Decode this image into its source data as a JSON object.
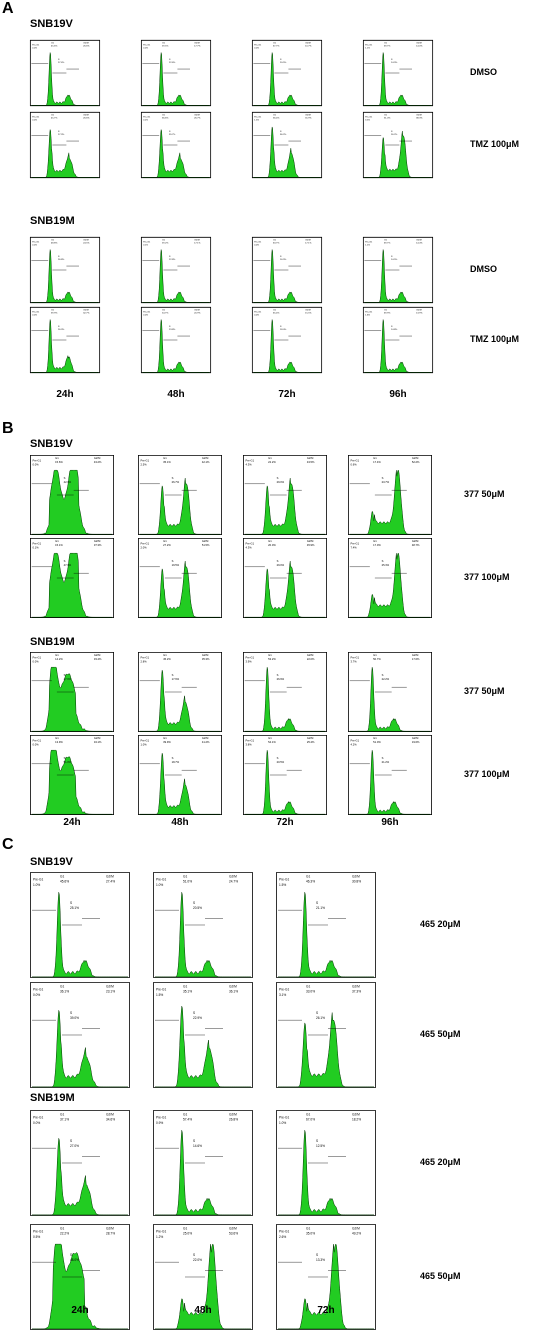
{
  "panels": [
    {
      "letter": "A",
      "groups": [
        {
          "cell_line": "SNB19V",
          "rows": [
            {
              "label": "DMSO",
              "plots": [
                {
                  "preg1": "0.0%",
                  "g1": "45.6%",
                  "s": "27.4%",
                  "g2m": "26.6%",
                  "shape": "dmso"
                },
                {
                  "preg1": "0.0%",
                  "g1": "59.5%",
                  "s": "22.6%",
                  "g2m": "17.7%",
                  "shape": "dmso"
                },
                {
                  "preg1": "0.0%",
                  "g1": "67.7%",
                  "s": "20.5%",
                  "g2m": "10.7%",
                  "shape": "dmso"
                },
                {
                  "preg1": "1.1%",
                  "g1": "69.7%",
                  "s": "14.9%",
                  "g2m": "14.0%",
                  "shape": "dmso"
                }
              ]
            },
            {
              "label": "TMZ 100μM",
              "plots": [
                {
                  "preg1": "0.0%",
                  "g1": "45.7%",
                  "s": "27.3%",
                  "g2m": "26.6%",
                  "shape": "tmz"
                },
                {
                  "preg1": "0.2%",
                  "g1": "36.6%",
                  "s": "39.7%",
                  "g2m": "26.7%",
                  "shape": "tmz"
                },
                {
                  "preg1": "1.5%",
                  "g1": "36.4%",
                  "s": "36.2%",
                  "g2m": "31.9%",
                  "shape": "tmz2"
                },
                {
                  "preg1": "3.5%",
                  "g1": "31.0%",
                  "s": "26.2%",
                  "g2m": "38.3%",
                  "shape": "tmz3"
                }
              ]
            }
          ]
        },
        {
          "cell_line": "SNB19M",
          "rows": [
            {
              "label": "DMSO",
              "plots": [
                {
                  "preg1": "0.0%",
                  "g1": "48.8%",
                  "s": "26.8%",
                  "g2m": "24.5%",
                  "shape": "dmso"
                },
                {
                  "preg1": "0.1%",
                  "g1": "59.2%",
                  "s": "22.8%",
                  "g2m": "17.1%",
                  "shape": "dmso"
                },
                {
                  "preg1": "0.0%",
                  "g1": "63.7%",
                  "s": "16.9%",
                  "g2m": "17.1%",
                  "shape": "dmso"
                },
                {
                  "preg1": "1.1%",
                  "g1": "69.7%",
                  "s": "14.5%",
                  "g2m": "14.4%",
                  "shape": "dmso"
                }
              ]
            },
            {
              "label": "TMZ 100μM",
              "plots": [
                {
                  "preg1": "0.0%",
                  "g1": "39.9%",
                  "s": "26.3%",
                  "g2m": "32.7%",
                  "shape": "dmso2"
                },
                {
                  "preg1": "0.0%",
                  "g1": "54.7%",
                  "s": "23.8%",
                  "g2m": "20.9%",
                  "shape": "dmso"
                },
                {
                  "preg1": "0.0%",
                  "g1": "65.4%",
                  "s": "18.0%",
                  "g2m": "15.5%",
                  "shape": "dmso"
                },
                {
                  "preg1": "1.6%",
                  "g1": "69.9%",
                  "s": "14.8%",
                  "g2m": "13.9%",
                  "shape": "dmso"
                }
              ]
            }
          ]
        }
      ],
      "times": [
        "24h",
        "48h",
        "72h",
        "96h"
      ]
    },
    {
      "letter": "B",
      "groups": [
        {
          "cell_line": "SNB19V",
          "rows": [
            {
              "label": "377 50μM",
              "plots": [
                {
                  "preg1": "0.0%",
                  "g1": "15.6%",
                  "s": "42.0%",
                  "g2m": "43.2%",
                  "shape": "broad"
                },
                {
                  "preg1": "2.5%",
                  "g1": "35.1%",
                  "s": "26.7%",
                  "g2m": "42.1%",
                  "shape": "tmz3"
                },
                {
                  "preg1": "4.3%",
                  "g1": "22.2%",
                  "s": "29.0%",
                  "g2m": "43.5%",
                  "shape": "tmz3"
                },
                {
                  "preg1": "0.6%",
                  "g1": "17.4%",
                  "s": "23.7%",
                  "g2m": "52.2%",
                  "shape": "g2"
                }
              ]
            },
            {
              "label": "377 100μM",
              "plots": [
                {
                  "preg1": "0.1%",
                  "g1": "15.1%",
                  "s": "47.0%",
                  "g2m": "37.3%",
                  "shape": "broad"
                },
                {
                  "preg1": "2.0%",
                  "g1": "27.2%",
                  "s": "19.5%",
                  "g2m": "51.5%",
                  "shape": "tmz3"
                },
                {
                  "preg1": "4.3%",
                  "g1": "20.0%",
                  "s": "29.0%",
                  "g2m": "45.9%",
                  "shape": "tmz3"
                },
                {
                  "preg1": "7.4%",
                  "g1": "17.0%",
                  "s": "25.3%",
                  "g2m": "48.7%",
                  "shape": "g2"
                }
              ]
            }
          ]
        },
        {
          "cell_line": "SNB19M",
          "rows": [
            {
              "label": "377 50μM",
              "plots": [
                {
                  "preg1": "0.0%",
                  "g1": "14.2%",
                  "s": "47.0%",
                  "g2m": "33.4%",
                  "shape": "broad2"
                },
                {
                  "preg1": "2.8%",
                  "g1": "45.2%",
                  "s": "17.6%",
                  "g2m": "35.3%",
                  "shape": "tmz2"
                },
                {
                  "preg1": "3.9%",
                  "g1": "53.2%",
                  "s": "26.9%",
                  "g2m": "22.0%",
                  "shape": "dmso"
                },
                {
                  "preg1": "3.7%",
                  "g1": "50.7%",
                  "s": "22.2%",
                  "g2m": "17.6%",
                  "shape": "dmso"
                }
              ]
            },
            {
              "label": "377 100μM",
              "plots": [
                {
                  "preg1": "0.0%",
                  "g1": "13.9%",
                  "s": "51.0%",
                  "g2m": "34.1%",
                  "shape": "broad2"
                },
                {
                  "preg1": "1.0%",
                  "g1": "39.9%",
                  "s": "18.7%",
                  "g2m": "41.2%",
                  "shape": "tmz2"
                },
                {
                  "preg1": "3.8%",
                  "g1": "54.1%",
                  "s": "20.5%",
                  "g2m": "25.4%",
                  "shape": "dmso"
                },
                {
                  "preg1": "4.2%",
                  "g1": "51.0%",
                  "s": "21.2%",
                  "g2m": "19.6%",
                  "shape": "dmso"
                }
              ]
            }
          ]
        }
      ],
      "times": [
        "24h",
        "48h",
        "72h",
        "96h"
      ]
    },
    {
      "letter": "C",
      "groups": [
        {
          "cell_line": "SNB19V",
          "rows": [
            {
              "label": "465 20μM",
              "plots": [
                {
                  "preg1": "1.0%",
                  "g1": "45.6%",
                  "s": "25.1%",
                  "g2m": "27.4%",
                  "shape": "dmso"
                },
                {
                  "preg1": "1.0%",
                  "g1": "51.0%",
                  "s": "20.5%",
                  "g2m": "24.7%",
                  "shape": "dmso"
                },
                {
                  "preg1": "1.5%",
                  "g1": "46.3%",
                  "s": "21.1%",
                  "g2m": "30.8%",
                  "shape": "dmso"
                }
              ]
            },
            {
              "label": "465 50μM",
              "plots": [
                {
                  "preg1": "0.0%",
                  "g1": "36.1%",
                  "s": "39.0%",
                  "g2m": "23.1%",
                  "shape": "tmz"
                },
                {
                  "preg1": "1.5%",
                  "g1": "35.1%",
                  "s": "22.9%",
                  "g2m": "36.1%",
                  "shape": "tmz2"
                },
                {
                  "preg1": "3.1%",
                  "g1": "33.0%",
                  "s": "26.1%",
                  "g2m": "37.3%",
                  "shape": "tmz3"
                }
              ]
            }
          ]
        },
        {
          "cell_line": "SNB19M",
          "rows": [
            {
              "label": "465 20μM",
              "plots": [
                {
                  "preg1": "0.0%",
                  "g1": "37.1%",
                  "s": "27.0%",
                  "g2m": "34.6%",
                  "shape": "tmz"
                },
                {
                  "preg1": "0.9%",
                  "g1": "57.4%",
                  "s": "14.6%",
                  "g2m": "26.8%",
                  "shape": "dmso"
                },
                {
                  "preg1": "1.0%",
                  "g1": "67.0%",
                  "s": "12.5%",
                  "g2m": "18.2%",
                  "shape": "dmso"
                }
              ]
            },
            {
              "label": "465 50μM",
              "plots": [
                {
                  "preg1": "0.5%",
                  "g1": "22.2%",
                  "s": "48.0%",
                  "g2m": "28.7%",
                  "shape": "broad2"
                },
                {
                  "preg1": "1.2%",
                  "g1": "25.0%",
                  "s": "22.0%",
                  "g2m": "53.6%",
                  "shape": "g2"
                },
                {
                  "preg1": "2.6%",
                  "g1": "35.0%",
                  "s": "13.3%",
                  "g2m": "49.2%",
                  "shape": "g2"
                }
              ]
            }
          ]
        }
      ],
      "times": [
        "24h",
        "48h",
        "72h"
      ]
    }
  ],
  "gate_labels": {
    "preg1": "Pre-G1",
    "g1": "G1",
    "s": "S",
    "g2m": "G2/M"
  },
  "colors": {
    "fill": "#22cc22",
    "stroke": "#003300",
    "frame": "#000000"
  }
}
